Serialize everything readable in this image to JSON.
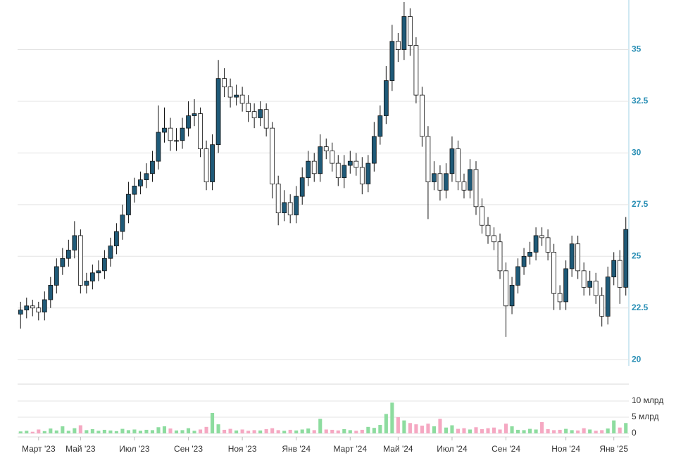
{
  "chart_data": {
    "type": "candlestick",
    "categories": [
      null,
      null,
      null,
      "Март '23",
      null,
      null,
      null,
      null,
      null,
      null,
      "Май '23",
      null,
      null,
      null,
      null,
      null,
      null,
      null,
      null,
      "Июл '23",
      null,
      null,
      null,
      null,
      null,
      null,
      null,
      null,
      "Сен '23",
      null,
      null,
      null,
      null,
      null,
      null,
      null,
      null,
      "Ноя '23",
      null,
      null,
      null,
      null,
      null,
      null,
      null,
      null,
      "Янв '24",
      null,
      null,
      null,
      null,
      null,
      null,
      null,
      null,
      "Март '24",
      null,
      null,
      null,
      null,
      null,
      null,
      null,
      "Май '24",
      null,
      null,
      null,
      null,
      null,
      null,
      null,
      null,
      "Июл '24",
      null,
      null,
      null,
      null,
      null,
      null,
      null,
      null,
      "Сен '24",
      null,
      null,
      null,
      null,
      null,
      null,
      null,
      null,
      null,
      "Ноя '24",
      null,
      null,
      null,
      null,
      null,
      null,
      null,
      "Янв '25",
      null,
      null
    ],
    "open": [
      22.2,
      22.4,
      22.6,
      22.5,
      22.3,
      22.9,
      23.6,
      24.5,
      24.9,
      25.3,
      26.0,
      23.6,
      23.8,
      24.2,
      24.3,
      24.9,
      25.5,
      26.2,
      27.0,
      28.0,
      28.4,
      28.7,
      29.0,
      29.6,
      31.0,
      31.2,
      30.6,
      30.6,
      31.2,
      31.8,
      31.9,
      30.2,
      28.6,
      30.4,
      33.6,
      33.2,
      32.7,
      32.8,
      32.4,
      32.0,
      31.7,
      32.1,
      31.2,
      28.5,
      27.1,
      27.6,
      27.0,
      27.9,
      28.8,
      29.6,
      29.0,
      30.3,
      30.1,
      29.5,
      28.8,
      29.4,
      29.6,
      29.3,
      28.5,
      29.5,
      30.8,
      31.8,
      33.5,
      35.4,
      35.0,
      36.6,
      35.2,
      32.8,
      30.8,
      28.6,
      29.0,
      28.2,
      29.0,
      30.2,
      28.6,
      28.2,
      29.2,
      27.4,
      26.5,
      26.0,
      25.7,
      24.3,
      22.6,
      23.6,
      24.5,
      25.0,
      25.2,
      26.0,
      25.9,
      25.2,
      23.2,
      22.8,
      24.4,
      25.6,
      24.3,
      23.5,
      23.8,
      23.1,
      22.1,
      24.0,
      24.8,
      23.5
    ],
    "high": [
      22.8,
      23.0,
      22.9,
      22.8,
      23.3,
      24.0,
      24.9,
      25.4,
      25.8,
      26.7,
      26.3,
      24.2,
      24.6,
      24.8,
      25.3,
      25.9,
      26.6,
      27.5,
      28.6,
      28.8,
      29.1,
      29.5,
      30.1,
      32.3,
      32.2,
      31.7,
      31.2,
      31.7,
      32.5,
      32.6,
      32.2,
      30.6,
      30.9,
      34.5,
      34.1,
      33.6,
      33.3,
      33.2,
      32.8,
      32.4,
      32.5,
      32.4,
      31.5,
      28.9,
      28.2,
      28.0,
      28.4,
      29.3,
      30.1,
      30.0,
      30.9,
      30.7,
      30.5,
      29.9,
      29.9,
      30.1,
      30.0,
      29.8,
      29.9,
      31.5,
      32.3,
      34.2,
      36.2,
      35.8,
      37.3,
      37.0,
      35.6,
      33.2,
      31.3,
      29.6,
      29.4,
      29.5,
      30.8,
      30.6,
      29.0,
      29.7,
      29.6,
      27.8,
      26.9,
      26.4,
      26.1,
      24.7,
      24.0,
      24.9,
      25.4,
      25.7,
      26.4,
      26.4,
      26.3,
      25.6,
      23.6,
      24.8,
      26.0,
      26.0,
      24.7,
      24.3,
      24.2,
      23.5,
      24.5,
      25.2,
      25.3,
      26.9
    ],
    "low": [
      21.5,
      22.0,
      22.1,
      21.9,
      21.9,
      22.5,
      23.2,
      24.1,
      24.5,
      24.9,
      23.2,
      23.2,
      23.4,
      23.8,
      23.9,
      24.5,
      25.1,
      25.8,
      26.6,
      27.6,
      28.0,
      28.3,
      28.6,
      29.2,
      30.5,
      30.1,
      30.1,
      30.2,
      30.8,
      31.3,
      29.8,
      28.2,
      28.2,
      30.0,
      32.7,
      32.2,
      32.3,
      32.0,
      31.5,
      31.2,
      31.3,
      30.8,
      27.8,
      26.5,
      26.7,
      26.6,
      26.6,
      27.5,
      28.4,
      28.6,
      28.6,
      29.7,
      29.1,
      28.4,
      28.3,
      29.0,
      28.9,
      28.0,
      28.1,
      29.1,
      30.4,
      31.4,
      33.0,
      34.4,
      34.5,
      34.7,
      32.4,
      30.3,
      26.8,
      28.2,
      27.7,
      27.8,
      28.6,
      28.2,
      27.8,
      27.8,
      27.0,
      26.1,
      25.6,
      25.3,
      23.9,
      21.1,
      22.2,
      23.2,
      24.1,
      24.6,
      24.8,
      25.5,
      24.8,
      22.4,
      22.4,
      22.4,
      24.0,
      23.9,
      23.1,
      23.1,
      22.7,
      21.6,
      21.7,
      23.6,
      22.7,
      23.1
    ],
    "close": [
      22.4,
      22.6,
      22.5,
      22.3,
      22.9,
      23.6,
      24.5,
      24.9,
      25.3,
      26.0,
      23.6,
      23.8,
      24.2,
      24.3,
      24.9,
      25.5,
      26.2,
      27.0,
      28.0,
      28.4,
      28.7,
      29.0,
      29.6,
      31.0,
      31.2,
      30.6,
      30.6,
      31.2,
      31.8,
      31.9,
      30.2,
      28.6,
      30.4,
      33.6,
      33.2,
      32.7,
      32.8,
      32.4,
      32.0,
      31.7,
      32.1,
      31.2,
      28.5,
      27.1,
      27.6,
      27.0,
      27.9,
      28.8,
      29.6,
      29.0,
      30.3,
      30.1,
      29.5,
      28.8,
      29.4,
      29.6,
      29.3,
      28.5,
      29.5,
      30.8,
      31.8,
      33.5,
      35.4,
      35.0,
      36.6,
      35.2,
      32.8,
      30.8,
      28.6,
      29.0,
      28.2,
      29.0,
      30.2,
      28.6,
      28.2,
      29.2,
      27.4,
      26.5,
      26.0,
      25.7,
      24.3,
      22.6,
      23.6,
      24.5,
      25.0,
      25.2,
      26.0,
      25.9,
      25.2,
      23.2,
      22.8,
      24.4,
      25.6,
      24.3,
      23.5,
      23.8,
      23.1,
      22.1,
      24.0,
      24.8,
      23.5,
      26.3
    ],
    "up_color": "#1f5a78",
    "down_color": "#ffffff",
    "wick_color": "#111111",
    "ylim": [
      19.7,
      37.4
    ],
    "yticks": [
      20,
      22.5,
      25,
      27.5,
      30,
      32.5,
      35
    ],
    "grid": true,
    "volume": {
      "values": [
        0.6,
        0.8,
        0.5,
        1.2,
        0.7,
        1.5,
        0.9,
        2.2,
        0.8,
        1.6,
        2.5,
        1.0,
        1.3,
        0.8,
        1.1,
        0.9,
        0.7,
        1.4,
        1.0,
        1.2,
        0.8,
        1.1,
        1.0,
        1.9,
        2.2,
        1.5,
        0.9,
        1.0,
        1.6,
        0.8,
        1.2,
        2.0,
        6.3,
        2.8,
        1.1,
        1.4,
        0.9,
        1.2,
        0.8,
        1.0,
        0.9,
        1.3,
        1.6,
        1.0,
        0.8,
        1.1,
        0.9,
        1.2,
        1.5,
        1.0,
        4.5,
        1.2,
        1.1,
        0.9,
        1.3,
        1.0,
        0.8,
        1.1,
        2.0,
        1.7,
        2.6,
        6.0,
        9.5,
        5.0,
        4.0,
        3.2,
        2.8,
        2.4,
        3.0,
        2.2,
        4.5,
        1.8,
        2.5,
        1.4,
        1.6,
        1.2,
        1.9,
        1.3,
        1.6,
        1.8,
        1.2,
        3.0,
        2.2,
        1.1,
        1.0,
        1.4,
        1.2,
        3.5,
        1.3,
        1.0,
        1.1,
        1.4,
        1.0,
        0.9,
        1.6,
        1.2,
        0.8,
        1.0,
        1.5,
        4.0,
        1.8,
        3.2
      ],
      "up_color": "#8ddc9f",
      "down_color": "#f5a8c2",
      "ylim": [
        0,
        15
      ],
      "yticks": [
        0,
        {
          "value": 5,
          "label": "5 млрд"
        },
        {
          "value": 10,
          "label": "10 млрд"
        }
      ]
    }
  }
}
